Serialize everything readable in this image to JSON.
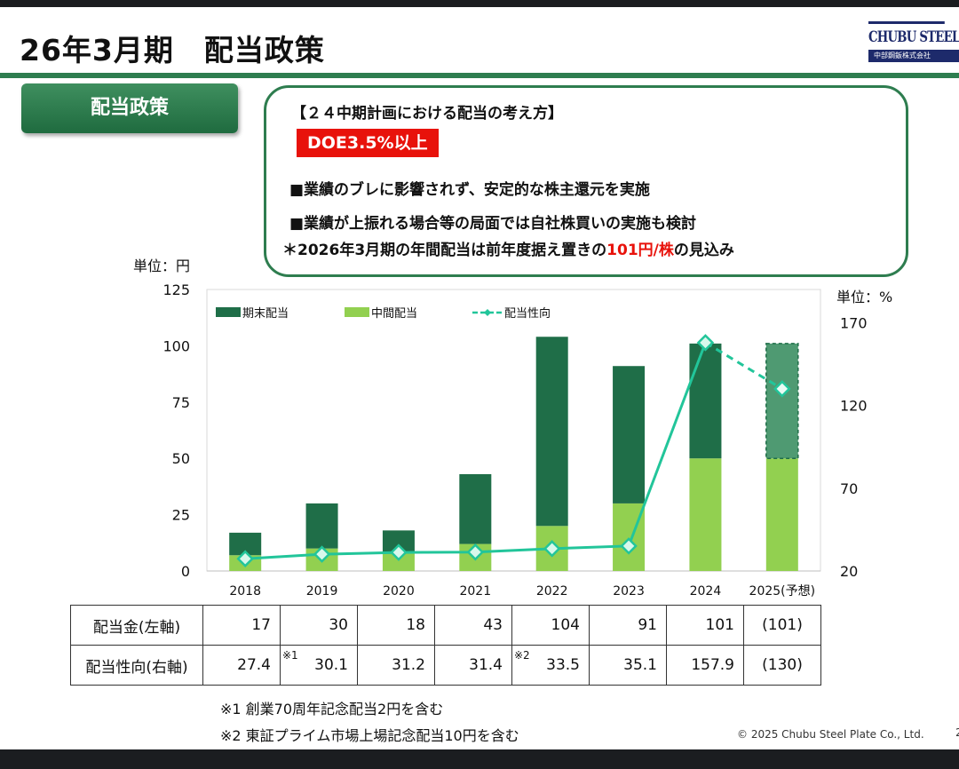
{
  "slide": {
    "title": "26年3月期　配当政策",
    "logo": {
      "main": "CHUBU STEEL PLATE",
      "sub": "中部鋼鈑株式会社"
    },
    "section_tab": "配当政策"
  },
  "policy": {
    "heading": "【２４中期計画における配当の考え方】",
    "doe_badge": "DOE3.5%以上",
    "bullets": [
      "■業績のブレに影響されず、安定的な株主還元を実施",
      "■業績が上振れる場合等の局面では自社株買いの実施も検討"
    ],
    "note_prefix": "＊2026年3月期の年間配当は前年度据え置きの",
    "note_highlight": "101円/株",
    "note_suffix": "の見込み"
  },
  "chart_data": {
    "type": "bar",
    "stacked": true,
    "categories": [
      "2018",
      "2019",
      "2020",
      "2021",
      "2022",
      "2023",
      "2024",
      "2025(予想)"
    ],
    "series": [
      {
        "name": "中間配当",
        "axis": "left",
        "color": "#92d050",
        "values": [
          7,
          10,
          8,
          12,
          20,
          30,
          50,
          50
        ]
      },
      {
        "name": "期末配当",
        "axis": "left",
        "color": "#1f6e48",
        "values": [
          10,
          20,
          10,
          31,
          84,
          61,
          51,
          51
        ],
        "forecast_last": true
      },
      {
        "name": "配当性向",
        "axis": "right",
        "type": "line",
        "color": "#22c59a",
        "values": [
          27.4,
          30.1,
          31.2,
          31.4,
          33.5,
          35.1,
          157.9,
          130
        ],
        "forecast_last": true
      }
    ],
    "legend_order": [
      "期末配当",
      "中間配当",
      "配当性向"
    ],
    "left_axis": {
      "unit_label": "単位：円",
      "min": 0,
      "max": 125,
      "ticks": [
        0,
        25,
        50,
        75,
        100,
        125
      ]
    },
    "right_axis": {
      "unit_label": "単位：%",
      "min": 20,
      "max": 190,
      "ticks": [
        20,
        70,
        120,
        170
      ]
    },
    "legend_position": "top-left"
  },
  "table": {
    "rows": [
      {
        "label": "配当金(左軸)",
        "values": [
          "17",
          "30",
          "18",
          "43",
          "104",
          "91",
          "101",
          "(101)"
        ],
        "marks": [
          "",
          "",
          "",
          "",
          "",
          "",
          "",
          ""
        ]
      },
      {
        "label": "配当性向(右軸)",
        "values": [
          "27.4",
          "30.1",
          "31.2",
          "31.4",
          "33.5",
          "35.1",
          "157.9",
          "(130)"
        ],
        "marks": [
          "",
          "※1",
          "",
          "",
          "※2",
          "",
          "",
          ""
        ]
      }
    ]
  },
  "footnotes": [
    "※1 創業70周年記念配当2円を含む",
    "※2 東証プライム市場上場記念配当10円を含む"
  ],
  "copyright": "© 2025 Chubu Steel Plate Co., Ltd.",
  "page_number": "2"
}
